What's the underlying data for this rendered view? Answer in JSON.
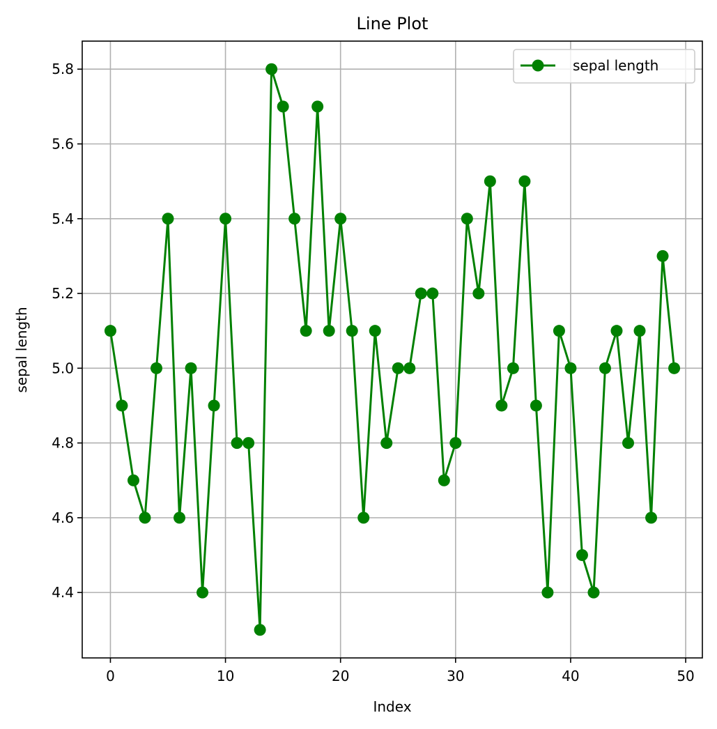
{
  "chart_data": {
    "type": "line",
    "title": "Line Plot",
    "xlabel": "Index",
    "ylabel": "sepal length",
    "xlim": [
      -2.45,
      51.45
    ],
    "ylim": [
      4.225,
      5.875
    ],
    "xticks": [
      0,
      10,
      20,
      30,
      40,
      50
    ],
    "xtick_labels": [
      "0",
      "10",
      "20",
      "30",
      "40",
      "50"
    ],
    "yticks": [
      4.4,
      4.6,
      4.8,
      5.0,
      5.2,
      5.4,
      5.6,
      5.8
    ],
    "ytick_labels": [
      "4.4",
      "4.6",
      "4.8",
      "5.0",
      "5.2",
      "5.4",
      "5.6",
      "5.8"
    ],
    "grid": true,
    "legend_position": "top-right",
    "series": [
      {
        "name": "sepal length",
        "color": "#008000",
        "marker": "circle",
        "x": [
          0,
          1,
          2,
          3,
          4,
          5,
          6,
          7,
          8,
          9,
          10,
          11,
          12,
          13,
          14,
          15,
          16,
          17,
          18,
          19,
          20,
          21,
          22,
          23,
          24,
          25,
          26,
          27,
          28,
          29,
          30,
          31,
          32,
          33,
          34,
          35,
          36,
          37,
          38,
          39,
          40,
          41,
          42,
          43,
          44,
          45,
          46,
          47,
          48,
          49
        ],
        "values": [
          5.1,
          4.9,
          4.7,
          4.6,
          5.0,
          5.4,
          4.6,
          5.0,
          4.4,
          4.9,
          5.4,
          4.8,
          4.8,
          4.3,
          5.8,
          5.7,
          5.4,
          5.1,
          5.7,
          5.1,
          5.4,
          5.1,
          4.6,
          5.1,
          4.8,
          5.0,
          5.0,
          5.2,
          5.2,
          4.7,
          4.8,
          5.4,
          5.2,
          5.5,
          4.9,
          5.0,
          5.5,
          4.9,
          4.4,
          5.1,
          5.0,
          4.5,
          4.4,
          5.0,
          5.1,
          4.8,
          5.1,
          4.6,
          5.3,
          5.0
        ]
      }
    ]
  }
}
